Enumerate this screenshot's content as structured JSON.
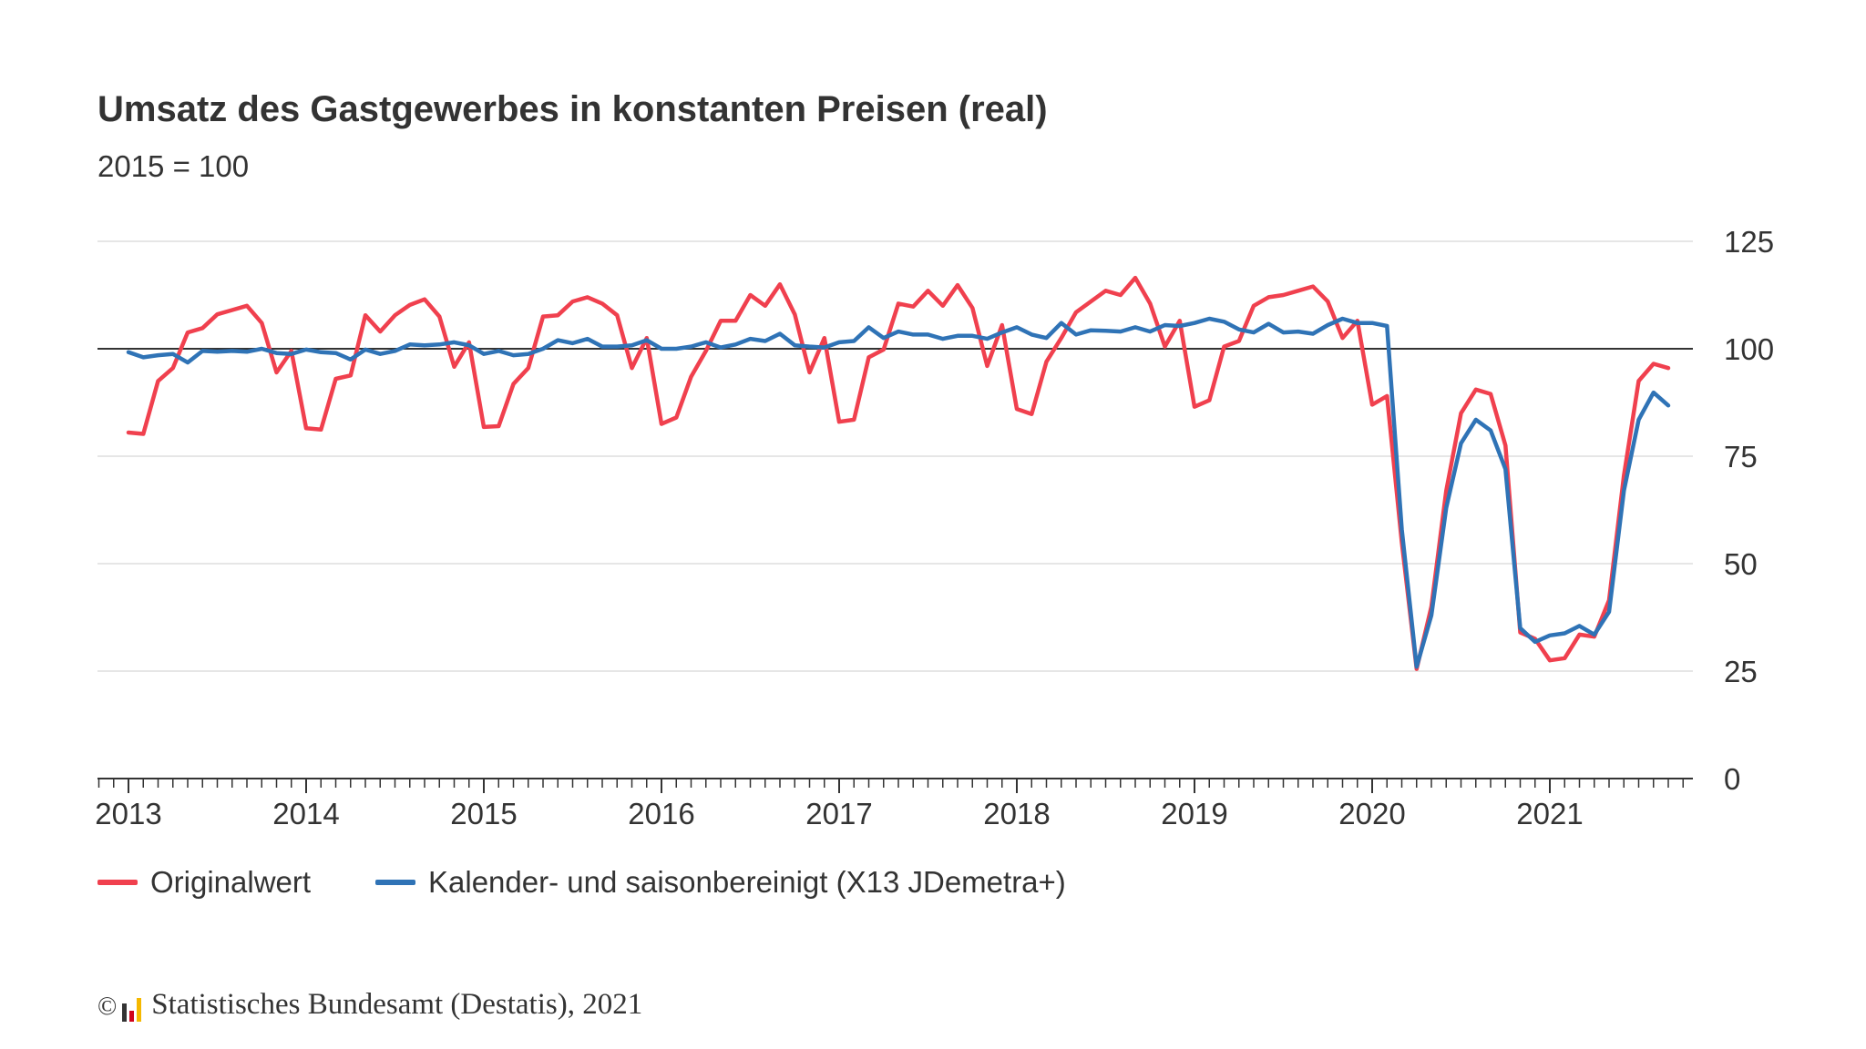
{
  "chart_data": {
    "type": "line",
    "title": "Umsatz des Gastgewerbes in konstanten Preisen (real)",
    "subtitle": "2015 = 100",
    "ylim": [
      0,
      125
    ],
    "yticks": [
      0,
      25,
      50,
      75,
      100,
      125
    ],
    "reference_line": 100,
    "x_start": "2013-01",
    "xticks": [
      "2013",
      "2014",
      "2015",
      "2016",
      "2017",
      "2018",
      "2019",
      "2020",
      "2021"
    ],
    "grid": "horizontal",
    "legend_position": "bottom",
    "series": [
      {
        "name": "Originalwert",
        "color": "#f0404e",
        "values": [
          80.5,
          80.2,
          92.5,
          95.5,
          103.8,
          104.8,
          108.0,
          109.0,
          110.0,
          106.0,
          94.5,
          99.5,
          81.5,
          81.2,
          93.0,
          93.8,
          107.8,
          104.0,
          107.8,
          110.2,
          111.5,
          107.5,
          95.8,
          101.5,
          81.8,
          82.0,
          91.8,
          95.5,
          107.5,
          107.8,
          111.0,
          112.0,
          110.5,
          107.8,
          95.5,
          102.5,
          82.5,
          84.0,
          93.5,
          99.5,
          106.5,
          106.5,
          112.5,
          110.0,
          115.0,
          108.0,
          94.5,
          102.5,
          83.0,
          83.5,
          98.0,
          99.8,
          110.5,
          109.8,
          113.5,
          110.0,
          114.8,
          109.5,
          96.0,
          105.5,
          86.0,
          84.8,
          97.0,
          102.5,
          108.5,
          111.0,
          113.5,
          112.5,
          116.5,
          110.5,
          100.5,
          106.5,
          86.5,
          88.0,
          100.5,
          101.8,
          110.0,
          112.0,
          112.5,
          113.5,
          114.5,
          111.0,
          102.5,
          106.5,
          87.0,
          89.0,
          55.0,
          25.5,
          40.0,
          67.0,
          85.0,
          90.5,
          89.5,
          77.5,
          34.0,
          32.5,
          27.5,
          28.0,
          33.5,
          33.0,
          41.5,
          70.5,
          92.5,
          96.5,
          95.5
        ]
      },
      {
        "name": "Kalender- und saisonbereinigt (X13 JDemetra+)",
        "color": "#2f73b6",
        "values": [
          99.2,
          98.0,
          98.5,
          98.8,
          96.8,
          99.5,
          99.3,
          99.5,
          99.3,
          100.0,
          99.0,
          98.8,
          99.8,
          99.2,
          99.0,
          97.5,
          99.8,
          98.8,
          99.5,
          101.0,
          100.8,
          101.0,
          101.5,
          100.8,
          98.8,
          99.5,
          98.5,
          98.8,
          100.0,
          102.0,
          101.3,
          102.3,
          100.5,
          100.5,
          100.8,
          102.0,
          100.0,
          100.0,
          100.5,
          101.5,
          100.3,
          101.0,
          102.3,
          101.8,
          103.5,
          100.8,
          100.5,
          100.3,
          101.5,
          101.8,
          105.0,
          102.5,
          104.0,
          103.3,
          103.3,
          102.3,
          103.0,
          103.0,
          102.3,
          103.8,
          105.0,
          103.3,
          102.5,
          106.0,
          103.3,
          104.3,
          104.2,
          104.0,
          105.0,
          104.0,
          105.5,
          105.3,
          106.0,
          107.0,
          106.3,
          104.5,
          103.8,
          105.8,
          103.8,
          104.0,
          103.5,
          105.5,
          107.0,
          106.0,
          106.0,
          105.3,
          58.0,
          26.0,
          38.0,
          63.0,
          78.0,
          83.5,
          81.0,
          72.0,
          35.0,
          31.8,
          33.3,
          33.8,
          35.5,
          33.5,
          38.8,
          67.0,
          83.5,
          89.8,
          86.8
        ]
      }
    ]
  },
  "footer": {
    "copyright_symbol": "©",
    "text": "Statistisches Bundesamt (Destatis), 2021",
    "logo_colors": [
      "#333333",
      "#d0021b",
      "#f5b800"
    ]
  }
}
